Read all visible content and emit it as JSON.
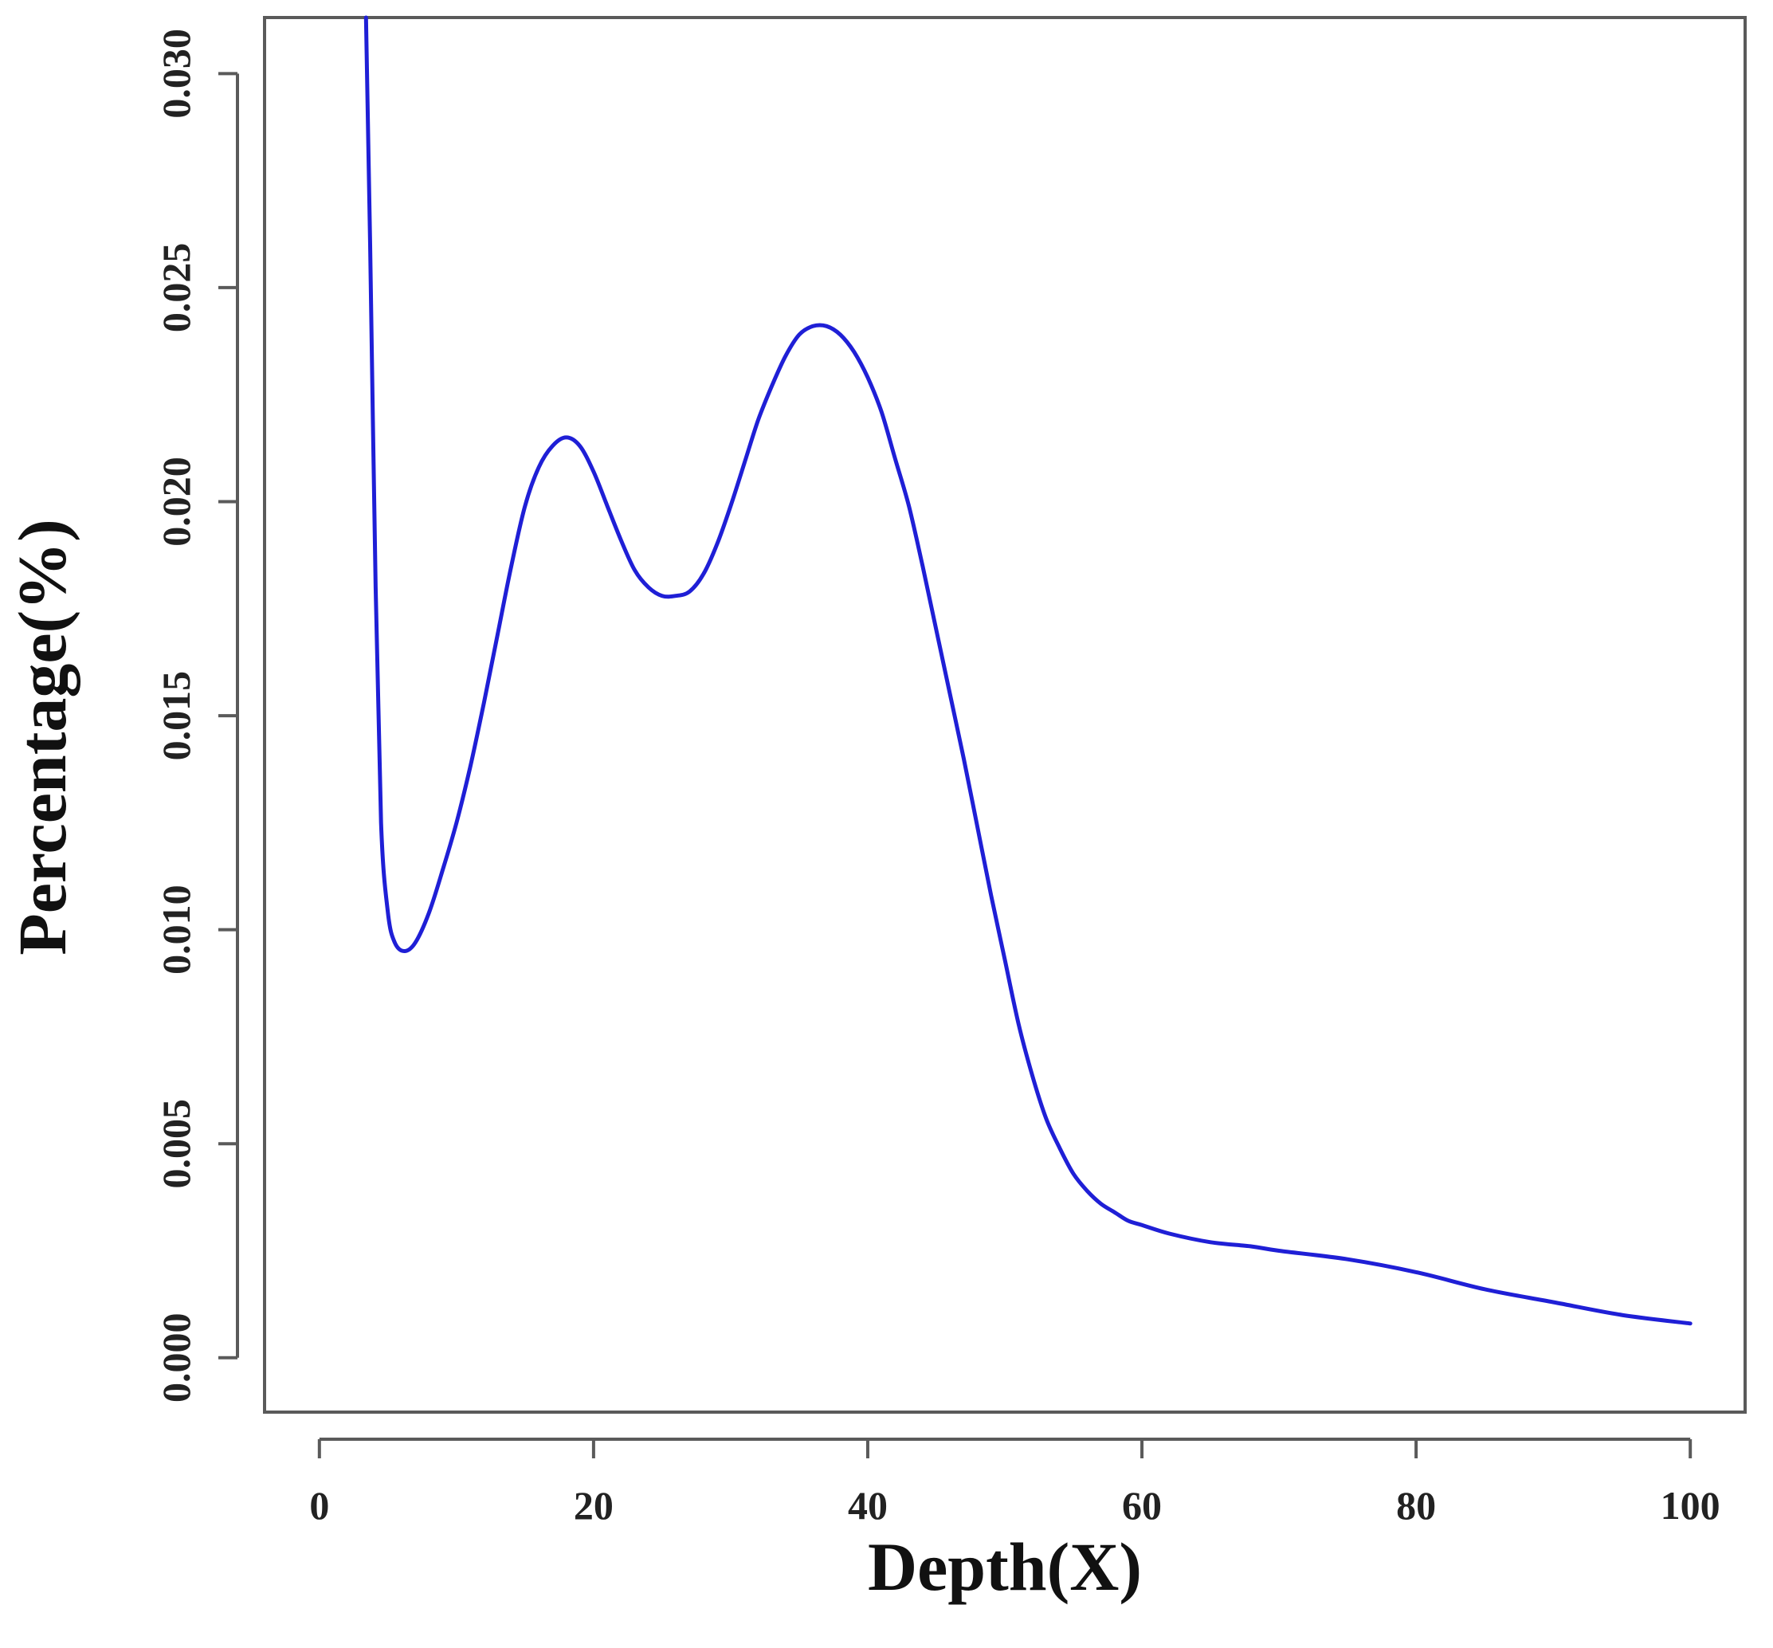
{
  "chart_data": {
    "type": "line",
    "title": "",
    "xlabel": "Depth(X)",
    "ylabel": "Percentage(%)",
    "xlim": [
      -4,
      104
    ],
    "ylim": [
      -0.00127,
      0.03131
    ],
    "x_ticks": [
      0,
      20,
      40,
      60,
      80,
      100
    ],
    "x_tick_labels": [
      "0",
      "20",
      "40",
      "60",
      "80",
      "100"
    ],
    "y_ticks": [
      0.0,
      0.005,
      0.01,
      0.015,
      0.02,
      0.025,
      0.03
    ],
    "y_tick_labels": [
      "0.000",
      "0.005",
      "0.010",
      "0.015",
      "0.020",
      "0.025",
      "0.030"
    ],
    "grid": false,
    "legend": "none",
    "line_color": "#1f1fd6",
    "series": [
      {
        "x": [
          3.4,
          3.7,
          4.1,
          4.5,
          5.0,
          5.5,
          6.2,
          7.0,
          8.0,
          9.0,
          10.0,
          11.0,
          12.0,
          13.0,
          14.0,
          15.0,
          16.0,
          17.0,
          18.0,
          19.0,
          20.0,
          21.0,
          22.0,
          23.0,
          24.0,
          25.0,
          26.0,
          27.0,
          28.0,
          29.0,
          30.0,
          31.0,
          32.0,
          33.0,
          34.0,
          35.0,
          36.0,
          37.0,
          38.0,
          39.0,
          40.0,
          41.0,
          42.0,
          43.0,
          44.0,
          45.0,
          46.0,
          47.0,
          48.0,
          49.0,
          50.0,
          51.0,
          52.0,
          53.0,
          54.0,
          55.0,
          56.0,
          57.0,
          58.0,
          59.0,
          60.0,
          62.0,
          65.0,
          68.0,
          70.0,
          75.0,
          80.0,
          85.0,
          90.0,
          95.0,
          100.0
        ],
        "y": [
          0.0315,
          0.026,
          0.018,
          0.0125,
          0.0104,
          0.0097,
          0.0095,
          0.0097,
          0.0104,
          0.0114,
          0.0125,
          0.0138,
          0.0153,
          0.0169,
          0.0185,
          0.0199,
          0.0208,
          0.0213,
          0.0215,
          0.0213,
          0.0207,
          0.0199,
          0.0191,
          0.0184,
          0.018,
          0.0178,
          0.0178,
          0.0179,
          0.0183,
          0.019,
          0.0199,
          0.0209,
          0.0219,
          0.0227,
          0.0234,
          0.0239,
          0.0241,
          0.0241,
          0.0239,
          0.0235,
          0.0229,
          0.0221,
          0.021,
          0.0199,
          0.0185,
          0.017,
          0.0155,
          0.014,
          0.0124,
          0.0108,
          0.0093,
          0.0078,
          0.0066,
          0.0056,
          0.0049,
          0.0043,
          0.0039,
          0.0036,
          0.0034,
          0.0032,
          0.0031,
          0.0029,
          0.0027,
          0.0026,
          0.0025,
          0.0023,
          0.002,
          0.0016,
          0.0013,
          0.001,
          0.0008
        ]
      }
    ]
  }
}
